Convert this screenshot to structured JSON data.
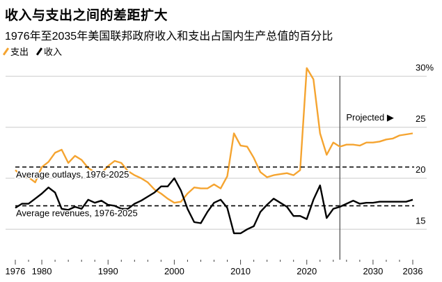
{
  "chart_data": {
    "type": "line",
    "title": "收入与支出之间的差距扩大",
    "subtitle": "1976年至2035年美国联邦政府收入和支出占国内生产总值的百分比",
    "xlabel": "",
    "ylabel": "",
    "xlim": [
      1976,
      2036
    ],
    "ylim": [
      12,
      31
    ],
    "y_ticks": [
      {
        "value": 30,
        "label": "30%"
      },
      {
        "value": 25,
        "label": "25"
      },
      {
        "value": 20,
        "label": "20"
      },
      {
        "value": 15,
        "label": "15"
      }
    ],
    "x_ticks": [
      {
        "value": 1976,
        "label": "1976"
      },
      {
        "value": 1980,
        "label": "1980"
      },
      {
        "value": 1990,
        "label": "1990"
      },
      {
        "value": 2000,
        "label": "2000"
      },
      {
        "value": 2010,
        "label": "2010"
      },
      {
        "value": 2020,
        "label": "2020"
      },
      {
        "value": 2030,
        "label": "2030"
      },
      {
        "value": 2036,
        "label": "2036"
      }
    ],
    "grid": "horizontal",
    "legend_placement": "top-left",
    "x": [
      1976,
      1977,
      1978,
      1979,
      1980,
      1981,
      1982,
      1983,
      1984,
      1985,
      1986,
      1987,
      1988,
      1989,
      1990,
      1991,
      1992,
      1993,
      1994,
      1995,
      1996,
      1997,
      1998,
      1999,
      2000,
      2001,
      2002,
      2003,
      2004,
      2005,
      2006,
      2007,
      2008,
      2009,
      2010,
      2011,
      2012,
      2013,
      2014,
      2015,
      2016,
      2017,
      2018,
      2019,
      2020,
      2021,
      2022,
      2023,
      2024,
      2025,
      2026,
      2027,
      2028,
      2029,
      2030,
      2031,
      2032,
      2033,
      2034,
      2035,
      2036
    ],
    "series": [
      {
        "name": "支出",
        "color": "#f5a430",
        "values": [
          20.8,
          20.2,
          20.1,
          19.6,
          21.1,
          21.6,
          22.5,
          22.8,
          21.5,
          22.2,
          21.8,
          21.0,
          20.6,
          20.5,
          21.2,
          21.7,
          21.5,
          20.7,
          20.3,
          20.0,
          19.6,
          18.9,
          18.5,
          18.0,
          17.6,
          17.7,
          18.5,
          19.1,
          19.0,
          19.0,
          19.4,
          19.0,
          20.2,
          24.4,
          23.2,
          23.1,
          22.0,
          20.6,
          20.1,
          20.3,
          20.4,
          20.5,
          20.3,
          20.8,
          30.8,
          29.7,
          24.4,
          22.3,
          23.5,
          23.1,
          23.3,
          23.3,
          23.2,
          23.5,
          23.5,
          23.6,
          23.8,
          23.9,
          24.2,
          24.3,
          24.4
        ]
      },
      {
        "name": "收入",
        "color": "#000000",
        "values": [
          17.1,
          17.5,
          17.5,
          18.0,
          18.5,
          19.1,
          18.6,
          17.0,
          16.9,
          17.2,
          17.0,
          17.9,
          17.6,
          17.8,
          17.4,
          17.3,
          17.0,
          17.0,
          17.5,
          17.8,
          18.2,
          18.6,
          19.2,
          19.2,
          20.0,
          18.8,
          17.0,
          15.7,
          15.6,
          16.7,
          17.6,
          17.9,
          17.1,
          14.6,
          14.6,
          15.0,
          15.3,
          16.7,
          17.4,
          18.0,
          17.6,
          17.2,
          16.3,
          16.3,
          16.0,
          17.9,
          19.3,
          16.1,
          17.0,
          17.2,
          17.5,
          17.8,
          17.5,
          17.6,
          17.6,
          17.7,
          17.7,
          17.7,
          17.7,
          17.7,
          17.9
        ]
      }
    ],
    "reference_lines": [
      {
        "label": "Average outlays, 1976-2025",
        "value": 21.1
      },
      {
        "label": "Average revenues, 1976-2025",
        "value": 17.3
      }
    ],
    "projection": {
      "label": "Projected ▶",
      "start": 2025
    }
  }
}
